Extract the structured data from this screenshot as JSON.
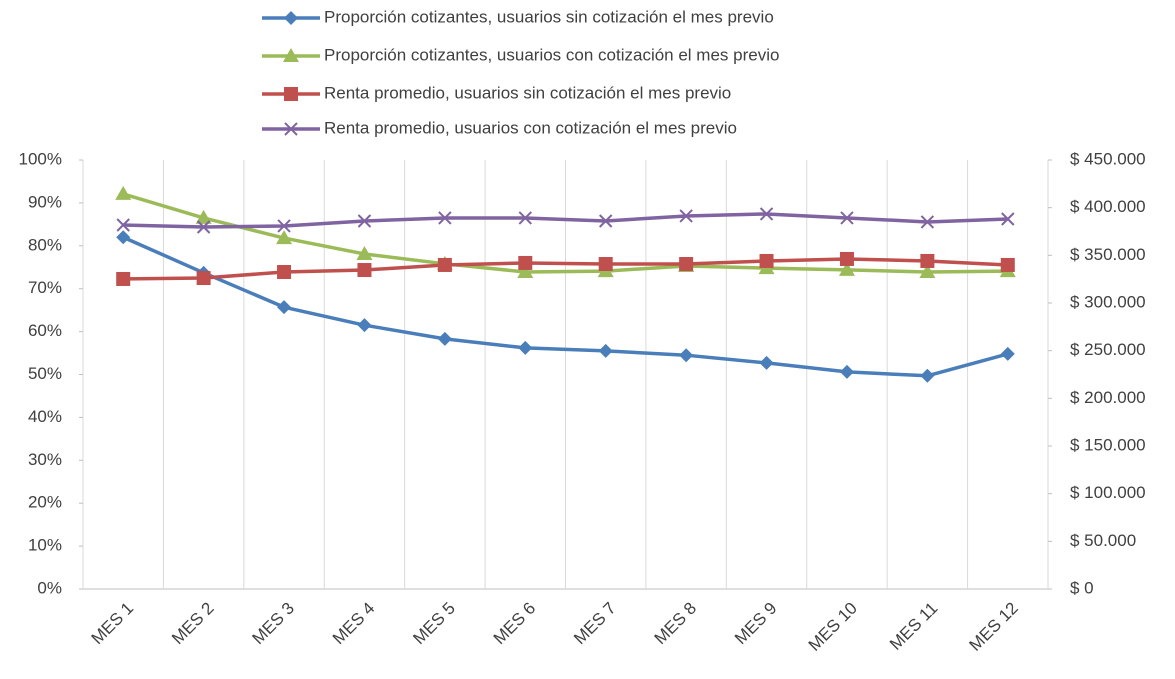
{
  "chart_data": {
    "type": "line",
    "categories": [
      "MES 1",
      "MES 2",
      "MES 3",
      "MES 4",
      "MES 5",
      "MES 6",
      "MES 7",
      "MES 8",
      "MES 9",
      "MES 10",
      "MES 11",
      "MES 12"
    ],
    "series": [
      {
        "name": "Proporción cotizantes, usuarios sin cotización el mes previo",
        "color": "#4a7ebb",
        "marker": "diamond",
        "values": [
          82,
          73.7,
          65.7,
          61.5,
          58.3,
          56.2,
          55.5,
          54.5,
          52.7,
          50.6,
          49.7,
          54.8
        ]
      },
      {
        "name": "Proporción cotizantes, usuarios con cotización el mes previo",
        "color": "#9bbb59",
        "marker": "triangle",
        "values": [
          92.1,
          86.5,
          81.8,
          78.1,
          75.8,
          73.9,
          74.1,
          75.3,
          74.8,
          74.4,
          73.9,
          74.1
        ]
      },
      {
        "name": "Renta promedio, usuarios sin cotización el mes previo",
        "color": "#c0504d",
        "marker": "square",
        "axis": "y2",
        "values": [
          325200,
          326200,
          332500,
          334600,
          339900,
          342000,
          340900,
          340900,
          344100,
          346200,
          344100,
          339900
        ]
      },
      {
        "name": "Renta promedio, usuarios con cotización el mes previo",
        "color": "#8064a2",
        "marker": "x",
        "axis": "y2",
        "values": [
          381800,
          379700,
          380800,
          386000,
          389200,
          389200,
          386000,
          391300,
          393400,
          389200,
          385000,
          388100
        ]
      }
    ],
    "ylim": [
      0,
      100
    ],
    "yticks": [
      {
        "value": 0,
        "label": "0%"
      },
      {
        "value": 10,
        "label": "10%"
      },
      {
        "value": 20,
        "label": "20%"
      },
      {
        "value": 30,
        "label": "30%"
      },
      {
        "value": 40,
        "label": "40%"
      },
      {
        "value": 50,
        "label": "50%"
      },
      {
        "value": 60,
        "label": "60%"
      },
      {
        "value": 70,
        "label": "70%"
      },
      {
        "value": 80,
        "label": "80%"
      },
      {
        "value": 90,
        "label": "90%"
      },
      {
        "value": 100,
        "label": "100%"
      }
    ],
    "y2lim": [
      0,
      450000
    ],
    "y2ticks": [
      {
        "value": 0,
        "label": "$ 0"
      },
      {
        "value": 50000,
        "label": "$ 50.000"
      },
      {
        "value": 100000,
        "label": "$ 100.000"
      },
      {
        "value": 150000,
        "label": "$ 150.000"
      },
      {
        "value": 200000,
        "label": "$ 200.000"
      },
      {
        "value": 250000,
        "label": "$ 250.000"
      },
      {
        "value": 300000,
        "label": "$ 300.000"
      },
      {
        "value": 350000,
        "label": "$ 350.000"
      },
      {
        "value": 400000,
        "label": "$ 400.000"
      },
      {
        "value": 450000,
        "label": "$ 450.000"
      }
    ],
    "legend": "top"
  }
}
